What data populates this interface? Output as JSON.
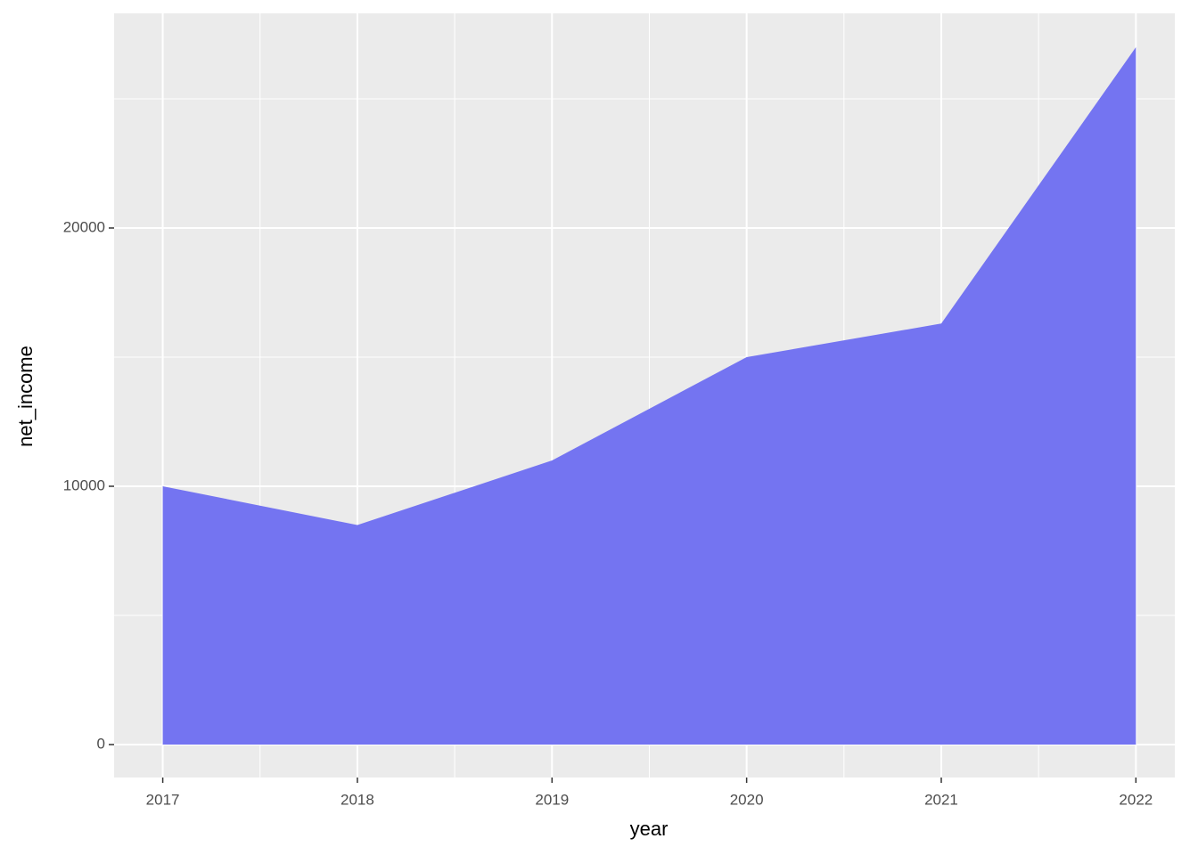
{
  "chart_data": {
    "type": "area",
    "x_label": "year",
    "y_label": "net_income",
    "x": [
      2017,
      2018,
      2019,
      2020,
      2021,
      2022
    ],
    "values": [
      10000,
      8500,
      11000,
      15000,
      16300,
      27000
    ],
    "color": "#7474f1",
    "xlim": [
      2016.75,
      2022.2
    ],
    "xticks": [
      2017,
      2018,
      2019,
      2020,
      2021,
      2022
    ],
    "x_minor_ticks": [
      2017.5,
      2018.5,
      2019.5,
      2020.5,
      2021.5
    ],
    "ylim": [
      -1276,
      28310
    ],
    "yticks": [
      0,
      10000,
      20000
    ],
    "y_minor_ticks": [
      5000,
      15000,
      25000
    ],
    "grid": true
  }
}
